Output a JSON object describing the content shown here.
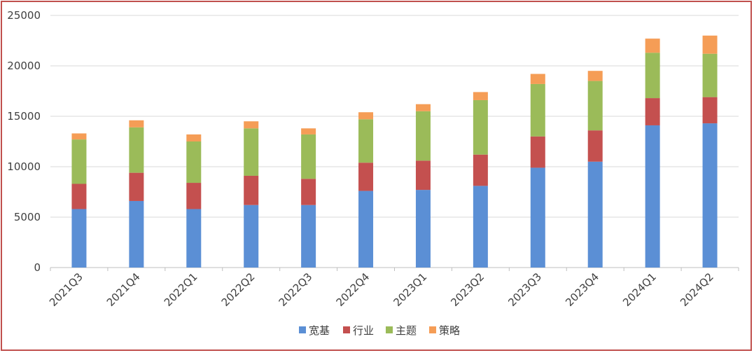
{
  "chart_data": {
    "type": "bar",
    "stacked": true,
    "title": "",
    "xlabel": "",
    "ylabel": "",
    "ylim": [
      0,
      25000
    ],
    "yticks": [
      0,
      5000,
      10000,
      15000,
      20000,
      25000
    ],
    "grid": true,
    "legend_position": "bottom",
    "categories": [
      "2021Q3",
      "2021Q4",
      "2022Q1",
      "2022Q2",
      "2022Q3",
      "2022Q4",
      "2023Q1",
      "2023Q2",
      "2023Q3",
      "2023Q4",
      "2024Q1",
      "2024Q2"
    ],
    "series": [
      {
        "name": "宽基",
        "color": "#5b8fd5",
        "values": [
          5800,
          6600,
          5800,
          6200,
          6200,
          7600,
          7700,
          8100,
          9900,
          10500,
          14100,
          14300
        ]
      },
      {
        "name": "行业",
        "color": "#c4504f",
        "values": [
          2500,
          2800,
          2600,
          2900,
          2600,
          2800,
          2900,
          3100,
          3100,
          3100,
          2700,
          2600
        ]
      },
      {
        "name": "主题",
        "color": "#9bbb59",
        "values": [
          4400,
          4500,
          4100,
          4700,
          4400,
          4300,
          4900,
          5400,
          5200,
          4900,
          4500,
          4300
        ]
      },
      {
        "name": "策略",
        "color": "#f59d56",
        "values": [
          600,
          700,
          700,
          700,
          600,
          700,
          700,
          800,
          1000,
          1000,
          1400,
          1800
        ]
      }
    ]
  }
}
